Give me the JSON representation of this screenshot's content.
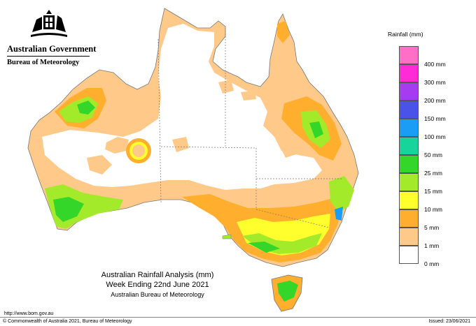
{
  "header": {
    "government": "Australian Government",
    "bureau": "Bureau of Meteorology"
  },
  "legend": {
    "title": "Rainfall (mm)",
    "items": [
      {
        "label": "",
        "color": "#ff6ec7"
      },
      {
        "label": "400 mm",
        "color": "#ff2bd6"
      },
      {
        "label": "300 mm",
        "color": "#a53cf0"
      },
      {
        "label": "200 mm",
        "color": "#4a52e8"
      },
      {
        "label": "150 mm",
        "color": "#1a9ef5"
      },
      {
        "label": "100 mm",
        "color": "#17d49a"
      },
      {
        "label": "50 mm",
        "color": "#35d62a"
      },
      {
        "label": "25 mm",
        "color": "#a3eb2a"
      },
      {
        "label": "15 mm",
        "color": "#ffff2e"
      },
      {
        "label": "10 mm",
        "color": "#ffae2e"
      },
      {
        "label": "5 mm",
        "color": "#ffc98a"
      },
      {
        "label": "1 mm",
        "color": "#ffffff"
      },
      {
        "label": "0 mm",
        "color": ""
      }
    ]
  },
  "caption": {
    "line1": "Australian Rainfall Analysis (mm)",
    "line2": "Week Ending 22nd June 2021",
    "line3": "Australian Bureau of Meteorology"
  },
  "footer": {
    "url": "http://www.bom.gov.au",
    "copyright": "© Commonwealth of Australia 2021, Bureau of Meteorology",
    "issued": "Issued: 23/06/2021"
  }
}
